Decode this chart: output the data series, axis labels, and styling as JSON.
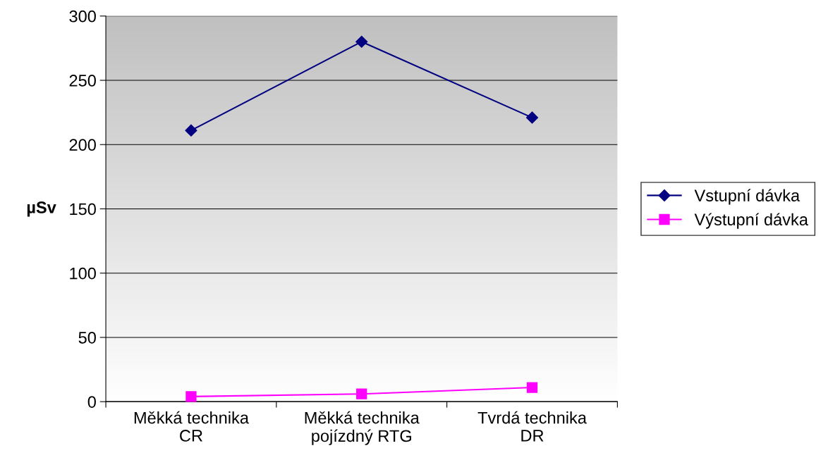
{
  "chart_data": {
    "type": "line",
    "ylabel": "µSv",
    "categories": [
      "Měkká technika\nCR",
      "Měkká technika\npojízdný RTG",
      "Tvrdá technika\nDR"
    ],
    "series": [
      {
        "name": "Vstupní dávka",
        "color": "#000080",
        "marker": "diamond",
        "values": [
          211,
          280,
          221
        ]
      },
      {
        "name": "Výstupní dávka",
        "color": "#ff00ff",
        "marker": "square",
        "values": [
          4,
          6,
          11
        ]
      }
    ],
    "ylim": [
      0,
      300
    ],
    "yticks": [
      0,
      50,
      100,
      150,
      200,
      250,
      300
    ],
    "grid": "y",
    "legend": "right"
  }
}
